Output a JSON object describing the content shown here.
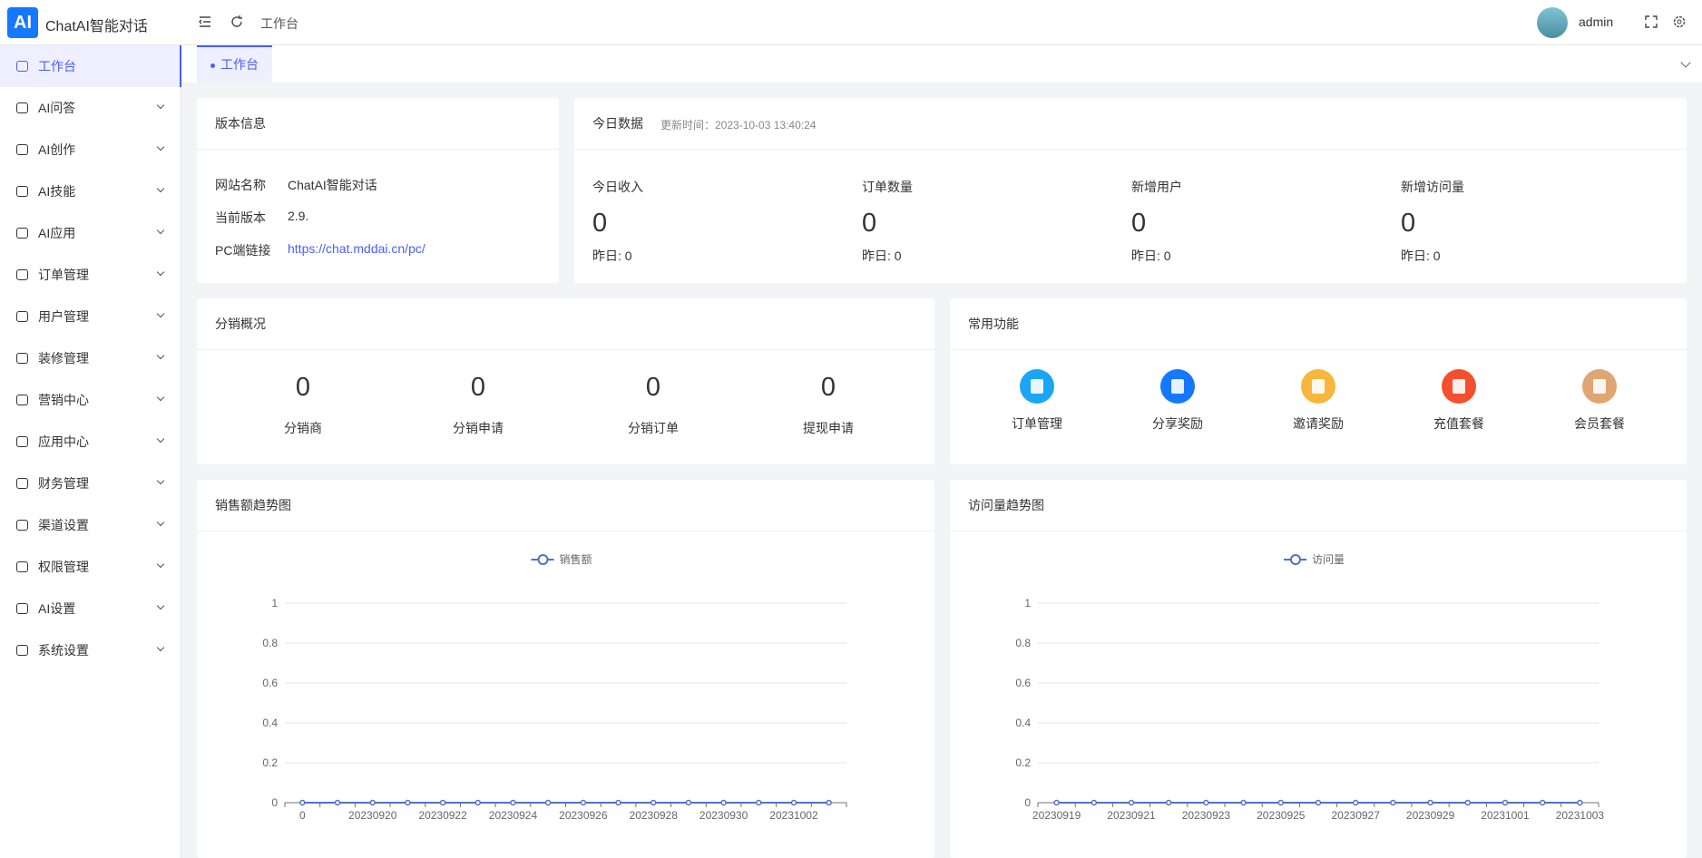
{
  "header": {
    "logo": "AI",
    "brand": "ChatAI智能对话",
    "breadcrumb": "工作台",
    "user": "admin"
  },
  "sidebar": {
    "items": [
      "工作台",
      "AI问答",
      "AI创作",
      "AI技能",
      "AI应用",
      "订单管理",
      "用户管理",
      "装修管理",
      "营销中心",
      "应用中心",
      "财务管理",
      "渠道设置",
      "权限管理",
      "AI设置",
      "系统设置"
    ]
  },
  "tabs": [
    "工作台"
  ],
  "version_card": {
    "title": "版本信息",
    "rows": [
      [
        "网站名称",
        "ChatAI智能对话"
      ],
      [
        "当前版本",
        "2.9."
      ],
      [
        "PC端链接",
        "https://chat.mddai.cn/pc/"
      ]
    ]
  },
  "today_card": {
    "title": "今日数据",
    "update_label": "更新时间：2023-10-03 13:40:24",
    "stats": [
      {
        "label": "今日收入",
        "value": 0,
        "yesterday": "昨日: 0"
      },
      {
        "label": "订单数量",
        "value": 0,
        "yesterday": "昨日: 0"
      },
      {
        "label": "新增用户",
        "value": 0,
        "yesterday": "昨日: 0"
      },
      {
        "label": "新增访问量",
        "value": 0,
        "yesterday": "昨日: 0"
      }
    ]
  },
  "distribution_card": {
    "title": "分销概况",
    "stats": [
      {
        "value": 0,
        "label": "分销商"
      },
      {
        "value": 0,
        "label": "分销申请"
      },
      {
        "value": 0,
        "label": "分销订单"
      },
      {
        "value": 0,
        "label": "提现申请"
      }
    ]
  },
  "shortcuts_card": {
    "title": "常用功能",
    "items": [
      {
        "label": "订单管理",
        "color": "#1aa6f5"
      },
      {
        "label": "分享奖励",
        "color": "#1677ff"
      },
      {
        "label": "邀请奖励",
        "color": "#f6b73c"
      },
      {
        "label": "充值套餐",
        "color": "#f5502e"
      },
      {
        "label": "会员套餐",
        "color": "#dfa674"
      }
    ]
  },
  "chart_data": [
    {
      "type": "line",
      "title": "销售额趋势图",
      "categories": [
        "0",
        null,
        "20230920",
        null,
        "20230922",
        null,
        "20230924",
        null,
        "20230926",
        null,
        "20230928",
        null,
        "20230930",
        null,
        "20231002",
        null
      ],
      "series": [
        {
          "name": "销售额",
          "color": "#5470c6",
          "values": [
            0,
            0,
            0,
            0,
            0,
            0,
            0,
            0,
            0,
            0,
            0,
            0,
            0,
            0,
            0,
            0
          ]
        }
      ],
      "ylim": [
        0,
        1
      ],
      "yticks": [
        0,
        0.2,
        0.4,
        0.6,
        0.8,
        1
      ],
      "grid": true
    },
    {
      "type": "line",
      "title": "访问量趋势图",
      "categories": [
        "20230919",
        null,
        "20230921",
        null,
        "20230923",
        null,
        "20230925",
        null,
        "20230927",
        null,
        "20230929",
        null,
        "20231001",
        null,
        "20231003"
      ],
      "series": [
        {
          "name": "访问量",
          "color": "#5470c6",
          "values": [
            0,
            0,
            0,
            0,
            0,
            0,
            0,
            0,
            0,
            0,
            0,
            0,
            0,
            0,
            0
          ]
        }
      ],
      "ylim": [
        0,
        1
      ],
      "yticks": [
        0,
        0.2,
        0.4,
        0.6,
        0.8,
        1
      ],
      "grid": true
    }
  ]
}
